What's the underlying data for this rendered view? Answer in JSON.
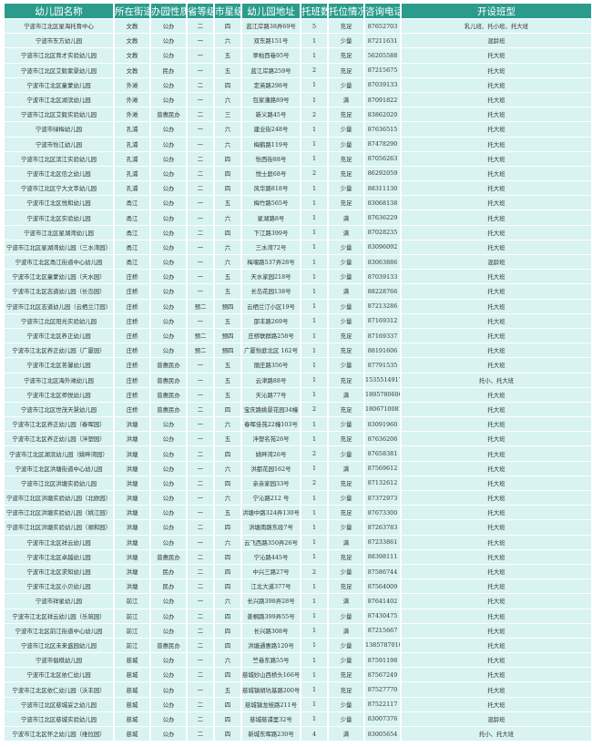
{
  "colors": {
    "header_bg": "#2b9c8c",
    "row_bg": "#d8f3f2"
  },
  "headers": [
    "幼儿园名称",
    "所在街道",
    "办园性质",
    "省等级",
    "市星级",
    "幼儿园地址",
    "托班数",
    "托位情况",
    "咨询电话",
    "开设班型"
  ],
  "rows": [
    [
      "宁波市江北区星海托育中心",
      "文教",
      "公办",
      "二",
      "四",
      "蓝江岸路38弄69号",
      "5",
      "充足",
      "87652703",
      "乳儿班、托小班、托大班"
    ],
    [
      "宁波市东方幼儿园",
      "文教",
      "公办",
      "一",
      "六",
      "双东路151号",
      "1",
      "少量",
      "87211631",
      "混龄班"
    ],
    [
      "宁波市江北区育才实验幼儿园",
      "文教",
      "公办",
      "一",
      "五",
      "翠柏西巷95号",
      "1",
      "充足",
      "56205588",
      "托大班"
    ],
    [
      "宁波市江北区艾毅紫景幼儿园",
      "文教",
      "民办",
      "一",
      "五",
      "蓝江岸路259号",
      "2",
      "充足",
      "87215675",
      "托大班"
    ],
    [
      "宁波市江北区童蒙幼儿园",
      "外滩",
      "公办",
      "二",
      "四",
      "定英路298号",
      "1",
      "少量",
      "87039133",
      "托大班"
    ],
    [
      "宁波市江北区湖滨幼儿园",
      "外滩",
      "公办",
      "一",
      "六",
      "包家漕路89号",
      "1",
      "满",
      "87091822",
      "托大班"
    ],
    [
      "宁波市江北区艾毅实验幼儿园",
      "外滩",
      "普惠民办",
      "二",
      "三",
      "新义路45号",
      "2",
      "充足",
      "83862020",
      "托大班"
    ],
    [
      "宁波市绿梅幼儿园",
      "孔浦",
      "公办",
      "一",
      "六",
      "建业街248号",
      "1",
      "少量",
      "87636515",
      "托大班"
    ],
    [
      "宁波市怡江幼儿园",
      "孔浦",
      "公办",
      "一",
      "六",
      "梅鹤路119号",
      "1",
      "少量",
      "87478290",
      "托大班"
    ],
    [
      "宁波市江北区滨江实验幼儿园",
      "孔浦",
      "公办",
      "二",
      "四",
      "怡西街88号",
      "1",
      "充足",
      "87056263",
      "托大班"
    ],
    [
      "宁波市江北区信之幼儿园",
      "孔浦",
      "公办",
      "二",
      "四",
      "悦士庭68号",
      "2",
      "充足",
      "86292059",
      "托大班"
    ],
    [
      "宁波市江北区宁大文萃幼儿园",
      "孔浦",
      "公办",
      "二",
      "四",
      "风华路818号",
      "1",
      "少量",
      "88311130",
      "托大班"
    ],
    [
      "宁波市江北区悦和幼儿园",
      "甬江",
      "公办",
      "一",
      "五",
      "梅竹路565号",
      "1",
      "充足",
      "83068138",
      "托大班"
    ],
    [
      "宁波市江北区实验幼儿园",
      "甬江",
      "公办",
      "一",
      "六",
      "星湖路8号",
      "1",
      "满",
      "87636229",
      "托大班"
    ],
    [
      "宁波市江北区星湖湾幼儿园",
      "甬江",
      "公办",
      "二",
      "四",
      "下江路399号",
      "1",
      "满",
      "87028235",
      "托大班"
    ],
    [
      "宁波市江北区星湖湾幼儿园（三水湾园）",
      "甬江",
      "公办",
      "一",
      "六",
      "三水湾72号",
      "1",
      "少量",
      "83096092",
      "托大班"
    ],
    [
      "宁波市江北区甬江街道中心幼儿园",
      "甬江",
      "公办",
      "一",
      "六",
      "梅堰路537弄28号",
      "1",
      "少量",
      "83063886",
      "混龄班"
    ],
    [
      "宁波市江北区童蒙幼儿园（天水园）",
      "庄桥",
      "公办",
      "一",
      "五",
      "天水家园218号",
      "1",
      "少量",
      "87039133",
      "托大班"
    ],
    [
      "宁波市江北区志道幼儿园（长岛园）",
      "庄桥",
      "公办",
      "一",
      "五",
      "长岛花园138号",
      "1",
      "满",
      "88228766",
      "托大班"
    ],
    [
      "宁波市江北区志道幼儿园（云栖兰汀园）",
      "庄桥",
      "公办",
      "预二",
      "预四",
      "云栖兰汀小区19号",
      "1",
      "少量",
      "87213286",
      "托大班"
    ],
    [
      "宁波市江北区阳光实验幼儿园",
      "庄桥",
      "公办",
      "一",
      "五",
      "邵丰路269号",
      "1",
      "少量",
      "87169312",
      "托大班"
    ],
    [
      "宁波市江北区养正幼儿园",
      "庄桥",
      "公办",
      "预二",
      "预四",
      "庄桥联群路258号",
      "1",
      "充足",
      "87169337",
      "托大班"
    ],
    [
      "宁波市江北区养正幼儿园（广厦园）",
      "庄桥",
      "公办",
      "预二",
      "预四",
      "广厦怡庭北区 162号",
      "1",
      "充足",
      "88191606",
      "托大班"
    ],
    [
      "宁波市江北区茗馨幼儿园",
      "庄桥",
      "普惠民办",
      "一",
      "五",
      "丽庄路356号",
      "1",
      "少量",
      "87791535",
      "托大班"
    ],
    [
      "宁波市江北区海外滩幼儿园",
      "庄桥",
      "普惠民办",
      "一",
      "五",
      "云津路88号",
      "1",
      "充足",
      "15355149172",
      "托小、托大班"
    ],
    [
      "宁波市江北区师悦幼儿园",
      "庄桥",
      "普惠民办",
      "一",
      "五",
      "天沁路77号",
      "1",
      "满",
      "18957806066",
      "托大班"
    ],
    [
      "宁波市江北区世茂天慧幼儿园",
      "庄桥",
      "普惠民办",
      "二",
      "四",
      "宝庆路姚景花园34幢",
      "2",
      "充足",
      "18067100815",
      "托大班"
    ],
    [
      "宁波市江北区养正幼儿园（春晖园）",
      "洪塘",
      "公办",
      "一",
      "六",
      "春晖佳苑22幢103号",
      "1",
      "少量",
      "83091960",
      "托大班"
    ],
    [
      "宁波市江北区养正幼儿园（泮塑园）",
      "洪塘",
      "公办",
      "一",
      "五",
      "泮塑名苑26号",
      "1",
      "充足",
      "87636206",
      "托大班"
    ],
    [
      "宁波市江北区湖滨幼儿园（姚畔湾园）",
      "洪塘",
      "公办",
      "二",
      "四",
      "姚畔湾26号",
      "2",
      "少量",
      "87658381",
      "托大班"
    ],
    [
      "宁波市江北区洪塘街道中心幼儿园",
      "洪塘",
      "公办",
      "一",
      "六",
      "洪都花园162号",
      "1",
      "满",
      "87569612",
      "托大班"
    ],
    [
      "宁波市江北区洪塘实验幼儿园",
      "洪塘",
      "公办",
      "二",
      "四",
      "亲亲家园33号",
      "2",
      "充足",
      "87132612",
      "托大班"
    ],
    [
      "宁波市江北区洪塘实验幼儿园（北欧园）",
      "洪塘",
      "公办",
      "一",
      "六",
      "宁沁路212 号",
      "1",
      "少量",
      "87372973",
      "托大班"
    ],
    [
      "宁波市江北区洪塘实验幼儿园（姚江园）",
      "洪塘",
      "公办",
      "一",
      "五",
      "洪塘中路324弄130号",
      "1",
      "充足",
      "87673300",
      "托大班"
    ],
    [
      "宁波市江北区洪塘实验幼儿园（顺和园）",
      "洪塘",
      "公办",
      "二",
      "四",
      "洪塘南路东段7号",
      "1",
      "少量",
      "87263783",
      "托大班"
    ],
    [
      "宁波市江北区祥云幼儿园",
      "洪塘",
      "公办",
      "一",
      "六",
      "云飞西路350弄26号",
      "1",
      "满",
      "87233861",
      "托大班"
    ],
    [
      "宁波市江北区卓越幼儿园",
      "洪塘",
      "普惠民办",
      "二",
      "四",
      "宁沁路445号",
      "1",
      "充足",
      "88398111",
      "托大班"
    ],
    [
      "宁波市江北区求知幼儿园",
      "洪塘",
      "民办",
      "二",
      "四",
      "中兴三路27号",
      "2",
      "少量",
      "87586744",
      "托大班"
    ],
    [
      "宁波市江北区小贝幼儿园",
      "洪塘",
      "民办",
      "二",
      "四",
      "江北大道377号",
      "1",
      "充足",
      "87564009",
      "托大班"
    ],
    [
      "宁波市祥星幼儿园",
      "前江",
      "公办",
      "一",
      "六",
      "长兴路398弄28号",
      "1",
      "满",
      "87641402",
      "托大班"
    ],
    [
      "宁波市江北区祥云幼儿园（乐筑园）",
      "前江",
      "公办",
      "二",
      "四",
      "姜桐路399弄55号",
      "1",
      "少量",
      "87430475",
      "托大班"
    ],
    [
      "宁波市江北区前江街道中心幼儿园",
      "前江",
      "公办",
      "二",
      "四",
      "长兴路308号",
      "1",
      "满",
      "87215667",
      "托大班"
    ],
    [
      "宁波市江北区未来盛园幼儿园",
      "前江",
      "普惠民办",
      "二",
      "四",
      "洪塘通惠路120号",
      "1",
      "少量",
      "13857870100",
      "托大班"
    ],
    [
      "宁波市倡棋幼儿园",
      "慈城",
      "公办",
      "一",
      "六",
      "竺巷东路55号",
      "1",
      "少量",
      "87591198",
      "托大班"
    ],
    [
      "宁波市江北区依仁幼儿园",
      "慈城",
      "公办",
      "二",
      "四",
      "慈城妙山西桥头166号",
      "1",
      "充足",
      "87567249",
      "托大班"
    ],
    [
      "宁波市江北区依仁幼儿园（沃丰园）",
      "慈城",
      "公办",
      "一",
      "五",
      "慈城镇胡坑基路200号",
      "1",
      "充足",
      "87527770",
      "托大班"
    ],
    [
      "宁波市江北区慈城妥之幼儿园",
      "慈城",
      "公办",
      "二",
      "四",
      "慈城镇龙桂路211号",
      "1",
      "少量",
      "87522117",
      "托大班"
    ],
    [
      "宁波市江北区慈城实验幼儿园",
      "慈城",
      "公办",
      "二",
      "四",
      "慈城慈浦里32号",
      "1",
      "少量",
      "83007376",
      "混龄班"
    ],
    [
      "宁波市江北区怀之幼儿园（维拉园）",
      "慈城",
      "公办",
      "二",
      "四",
      "新城东晖路230号",
      "4",
      "满",
      "83005654",
      "托小、托大班"
    ]
  ]
}
